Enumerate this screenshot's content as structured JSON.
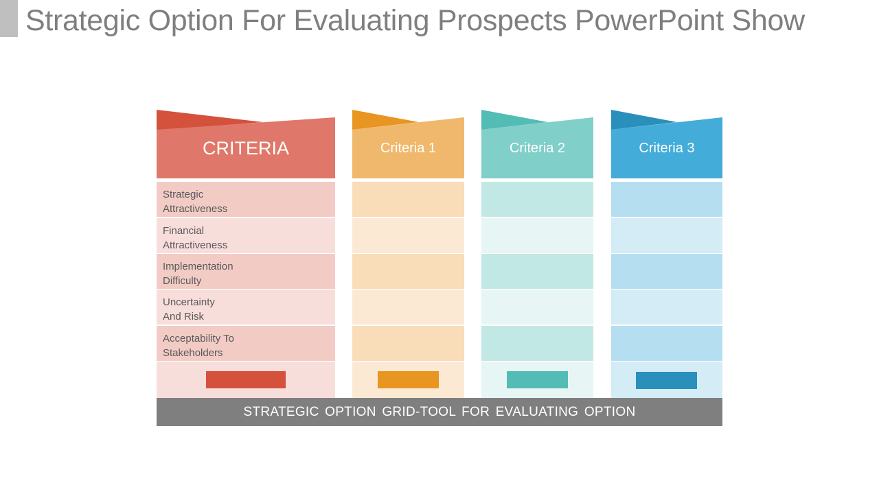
{
  "slide": {
    "title": "Strategic Option For Evaluating Prospects PowerPoint Show",
    "footer": "STRATEGIC OPTION GRID-TOOL FOR EVALUATING OPTION"
  },
  "criteria_column": {
    "header": "CRITERIA",
    "rows": [
      "Strategic\nAttractiveness",
      "Financial\nAttractiveness",
      "Implementation\nDifficulty",
      "Uncertainty\nAnd Risk",
      "Acceptability  To\nStakeholders"
    ]
  },
  "options": [
    {
      "header": "Criteria 1"
    },
    {
      "header": "Criteria 2"
    },
    {
      "header": "Criteria 3"
    }
  ],
  "colors": {
    "criteria": {
      "tab": "#d4513c",
      "head": "#df786a",
      "row_dark": "#f2cbc5",
      "row_light": "#f8dedb",
      "swatch": "#d4513c"
    },
    "criteria1": {
      "tab": "#e89521",
      "head": "#f0b86c",
      "row_dark": "#f9dcb8",
      "row_light": "#fbe9d3",
      "swatch": "#e89521"
    },
    "criteria2": {
      "tab": "#52bcb5",
      "head": "#80cfc9",
      "row_dark": "#c1e8e5",
      "row_light": "#e7f5f4",
      "swatch": "#52bcb5"
    },
    "criteria3": {
      "tab": "#2a8fba",
      "head": "#43acd8",
      "row_dark": "#b5dff0",
      "row_light": "#d3ecf6",
      "swatch": "#2a8fba"
    },
    "footer": "#7f7f7f",
    "title": "#7f7f7f"
  }
}
